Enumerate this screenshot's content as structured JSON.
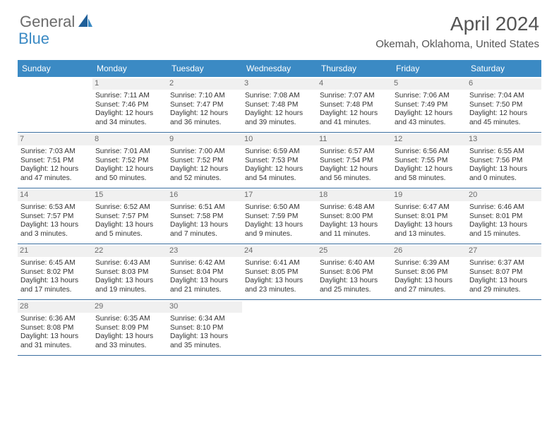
{
  "brand": {
    "part1": "General",
    "part2": "Blue"
  },
  "title": "April 2024",
  "location": "Okemah, Oklahoma, United States",
  "colors": {
    "header_bg": "#3b8ac4",
    "header_text": "#ffffff",
    "border": "#3b6fa0",
    "daynum_bg": "#f0f0f0",
    "body_text": "#333333",
    "brand_gray": "#6b6b6b",
    "brand_blue": "#3b8ac4"
  },
  "day_names": [
    "Sunday",
    "Monday",
    "Tuesday",
    "Wednesday",
    "Thursday",
    "Friday",
    "Saturday"
  ],
  "layout": {
    "first_weekday_offset": 1,
    "days_in_month": 30
  },
  "days": {
    "1": {
      "sunrise": "7:11 AM",
      "sunset": "7:46 PM",
      "daylight1": "Daylight: 12 hours",
      "daylight2": "and 34 minutes."
    },
    "2": {
      "sunrise": "7:10 AM",
      "sunset": "7:47 PM",
      "daylight1": "Daylight: 12 hours",
      "daylight2": "and 36 minutes."
    },
    "3": {
      "sunrise": "7:08 AM",
      "sunset": "7:48 PM",
      "daylight1": "Daylight: 12 hours",
      "daylight2": "and 39 minutes."
    },
    "4": {
      "sunrise": "7:07 AM",
      "sunset": "7:48 PM",
      "daylight1": "Daylight: 12 hours",
      "daylight2": "and 41 minutes."
    },
    "5": {
      "sunrise": "7:06 AM",
      "sunset": "7:49 PM",
      "daylight1": "Daylight: 12 hours",
      "daylight2": "and 43 minutes."
    },
    "6": {
      "sunrise": "7:04 AM",
      "sunset": "7:50 PM",
      "daylight1": "Daylight: 12 hours",
      "daylight2": "and 45 minutes."
    },
    "7": {
      "sunrise": "7:03 AM",
      "sunset": "7:51 PM",
      "daylight1": "Daylight: 12 hours",
      "daylight2": "and 47 minutes."
    },
    "8": {
      "sunrise": "7:01 AM",
      "sunset": "7:52 PM",
      "daylight1": "Daylight: 12 hours",
      "daylight2": "and 50 minutes."
    },
    "9": {
      "sunrise": "7:00 AM",
      "sunset": "7:52 PM",
      "daylight1": "Daylight: 12 hours",
      "daylight2": "and 52 minutes."
    },
    "10": {
      "sunrise": "6:59 AM",
      "sunset": "7:53 PM",
      "daylight1": "Daylight: 12 hours",
      "daylight2": "and 54 minutes."
    },
    "11": {
      "sunrise": "6:57 AM",
      "sunset": "7:54 PM",
      "daylight1": "Daylight: 12 hours",
      "daylight2": "and 56 minutes."
    },
    "12": {
      "sunrise": "6:56 AM",
      "sunset": "7:55 PM",
      "daylight1": "Daylight: 12 hours",
      "daylight2": "and 58 minutes."
    },
    "13": {
      "sunrise": "6:55 AM",
      "sunset": "7:56 PM",
      "daylight1": "Daylight: 13 hours",
      "daylight2": "and 0 minutes."
    },
    "14": {
      "sunrise": "6:53 AM",
      "sunset": "7:57 PM",
      "daylight1": "Daylight: 13 hours",
      "daylight2": "and 3 minutes."
    },
    "15": {
      "sunrise": "6:52 AM",
      "sunset": "7:57 PM",
      "daylight1": "Daylight: 13 hours",
      "daylight2": "and 5 minutes."
    },
    "16": {
      "sunrise": "6:51 AM",
      "sunset": "7:58 PM",
      "daylight1": "Daylight: 13 hours",
      "daylight2": "and 7 minutes."
    },
    "17": {
      "sunrise": "6:50 AM",
      "sunset": "7:59 PM",
      "daylight1": "Daylight: 13 hours",
      "daylight2": "and 9 minutes."
    },
    "18": {
      "sunrise": "6:48 AM",
      "sunset": "8:00 PM",
      "daylight1": "Daylight: 13 hours",
      "daylight2": "and 11 minutes."
    },
    "19": {
      "sunrise": "6:47 AM",
      "sunset": "8:01 PM",
      "daylight1": "Daylight: 13 hours",
      "daylight2": "and 13 minutes."
    },
    "20": {
      "sunrise": "6:46 AM",
      "sunset": "8:01 PM",
      "daylight1": "Daylight: 13 hours",
      "daylight2": "and 15 minutes."
    },
    "21": {
      "sunrise": "6:45 AM",
      "sunset": "8:02 PM",
      "daylight1": "Daylight: 13 hours",
      "daylight2": "and 17 minutes."
    },
    "22": {
      "sunrise": "6:43 AM",
      "sunset": "8:03 PM",
      "daylight1": "Daylight: 13 hours",
      "daylight2": "and 19 minutes."
    },
    "23": {
      "sunrise": "6:42 AM",
      "sunset": "8:04 PM",
      "daylight1": "Daylight: 13 hours",
      "daylight2": "and 21 minutes."
    },
    "24": {
      "sunrise": "6:41 AM",
      "sunset": "8:05 PM",
      "daylight1": "Daylight: 13 hours",
      "daylight2": "and 23 minutes."
    },
    "25": {
      "sunrise": "6:40 AM",
      "sunset": "8:06 PM",
      "daylight1": "Daylight: 13 hours",
      "daylight2": "and 25 minutes."
    },
    "26": {
      "sunrise": "6:39 AM",
      "sunset": "8:06 PM",
      "daylight1": "Daylight: 13 hours",
      "daylight2": "and 27 minutes."
    },
    "27": {
      "sunrise": "6:37 AM",
      "sunset": "8:07 PM",
      "daylight1": "Daylight: 13 hours",
      "daylight2": "and 29 minutes."
    },
    "28": {
      "sunrise": "6:36 AM",
      "sunset": "8:08 PM",
      "daylight1": "Daylight: 13 hours",
      "daylight2": "and 31 minutes."
    },
    "29": {
      "sunrise": "6:35 AM",
      "sunset": "8:09 PM",
      "daylight1": "Daylight: 13 hours",
      "daylight2": "and 33 minutes."
    },
    "30": {
      "sunrise": "6:34 AM",
      "sunset": "8:10 PM",
      "daylight1": "Daylight: 13 hours",
      "daylight2": "and 35 minutes."
    }
  },
  "labels": {
    "sunrise_prefix": "Sunrise: ",
    "sunset_prefix": "Sunset: "
  }
}
